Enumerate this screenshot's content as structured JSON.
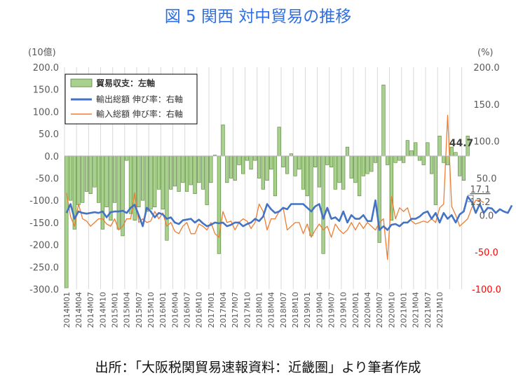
{
  "title": "図 5 関西 対中貿易の推移",
  "source": "出所：「大阪税関貿易速報資料：近畿圏」より筆者作成",
  "colors": {
    "bar_fill": "#a9d18e",
    "bar_stroke": "#548235",
    "export_line": "#4472c4",
    "import_line": "#ed7d31",
    "axis_text": "#595959",
    "right_negative": "#ff0000",
    "grid": "#d9d9d9"
  },
  "chart_data": {
    "type": "bar+line",
    "left_unit": "(10億)",
    "right_unit": "(%)",
    "y_left": {
      "min": -300,
      "max": 200,
      "step": 50,
      "ticks": [
        "200.0",
        "150.0",
        "100.0",
        "50.0",
        "0.0",
        "-50.0",
        "-100.0",
        "-150.0",
        "-200.0",
        "-250.0",
        "-300.0"
      ]
    },
    "y_right": {
      "min": -100,
      "max": 200,
      "step": 50,
      "ticks": [
        "200.0",
        "150.0",
        "100.0",
        "50.0",
        "0.0",
        "-50.0",
        "-100.0"
      ]
    },
    "x_tick_labels": [
      "2014M01",
      "2014M04",
      "2014M07",
      "2014M10",
      "2015M01",
      "2015M04",
      "2015M07",
      "2015M10",
      "2016M01",
      "2016M04",
      "2016M07",
      "2016M10",
      "2017M01",
      "2017M04",
      "2017M07",
      "2017M10",
      "2018M01",
      "2018M04",
      "2018M07",
      "2018M10",
      "2019M01",
      "2019M04",
      "2019M07",
      "2019M10",
      "2020M01",
      "2020M04",
      "2020M07",
      "2020M10",
      "2021M01",
      "2021M04",
      "2021M07",
      "2021M10"
    ],
    "legend": [
      {
        "label": "貿易収支：左軸",
        "kind": "bar"
      },
      {
        "label": "輸出総額 伸び率：右軸",
        "kind": "line"
      },
      {
        "label": "輸入総額 伸び率：右軸",
        "kind": "line"
      }
    ],
    "annotations": {
      "bar_last": "44.7",
      "export_last": "13.2",
      "import_last": "17.1"
    },
    "series": [
      {
        "name": "貿易収支：左軸",
        "axis": "left",
        "type": "bar",
        "values": [
          -297,
          -100,
          -165,
          -110,
          -105,
          -80,
          -85,
          -70,
          -105,
          -165,
          -115,
          -145,
          -105,
          -165,
          -180,
          -10,
          -130,
          -145,
          -115,
          -100,
          -125,
          -120,
          -115,
          -75,
          -120,
          -190,
          -75,
          -68,
          -80,
          -60,
          -80,
          -65,
          -85,
          -60,
          -75,
          -110,
          -60,
          2,
          -220,
          70,
          -60,
          -50,
          -55,
          -20,
          -40,
          -10,
          -30,
          -10,
          -50,
          -75,
          -55,
          -30,
          -90,
          65,
          -25,
          -40,
          5,
          -45,
          -30,
          -75,
          -90,
          -180,
          -25,
          -70,
          -220,
          -20,
          -25,
          -75,
          -60,
          -75,
          20,
          -50,
          -60,
          -90,
          -45,
          -40,
          -35,
          -15,
          -195,
          160,
          -20,
          -145,
          -15,
          -10,
          -15,
          35,
          12,
          30,
          -10,
          -20,
          30,
          -40,
          -110,
          45,
          -15,
          -20,
          20,
          8,
          -45,
          -55,
          45
        ]
      },
      {
        "name": "輸出総額 伸び率：右軸",
        "axis": "right",
        "type": "line",
        "values": [
          3,
          15,
          -5,
          5,
          3,
          2,
          3,
          4,
          3,
          5,
          -3,
          4,
          5,
          5,
          6,
          3,
          10,
          14,
          0,
          -15,
          10,
          5,
          -3,
          3,
          1,
          -5,
          -3,
          -10,
          -12,
          -7,
          -6,
          -5,
          -10,
          -6,
          -11,
          -15,
          -13,
          -10,
          -11,
          -10,
          -15,
          -13,
          -10,
          -10,
          -15,
          -12,
          -10,
          -5,
          -8,
          -2,
          15,
          8,
          3,
          5,
          10,
          8,
          15,
          15,
          15,
          15,
          10,
          5,
          12,
          15,
          -5,
          10,
          -5,
          -3,
          -8,
          5,
          -10,
          0,
          -5,
          -5,
          0,
          -8,
          -8,
          20,
          -20,
          -15,
          -20,
          -13,
          -12,
          -15,
          -10,
          -10,
          -5,
          -5,
          -2,
          3,
          5,
          -5,
          3,
          -10,
          3,
          -5,
          0,
          -10,
          1,
          5,
          25,
          18,
          3,
          15,
          3,
          10,
          9,
          3,
          8,
          5,
          3,
          13.2
        ]
      },
      {
        "name": "輸入総額 伸び率：右軸",
        "axis": "right",
        "type": "line",
        "values": [
          30,
          -2,
          -15,
          15,
          -5,
          -8,
          -15,
          -10,
          -5,
          -5,
          -12,
          -15,
          -5,
          -20,
          -15,
          -5,
          -5,
          30,
          -10,
          -5,
          -10,
          -8,
          5,
          -5,
          3,
          -15,
          -10,
          -22,
          -25,
          -15,
          -10,
          -25,
          -25,
          -12,
          -15,
          -20,
          -10,
          -25,
          -30,
          5,
          -10,
          -8,
          -20,
          -10,
          -5,
          -8,
          -18,
          -10,
          15,
          5,
          -20,
          -5,
          -5,
          5,
          10,
          -20,
          -15,
          -10,
          -10,
          -25,
          -12,
          -30,
          -20,
          -12,
          -20,
          -15,
          -30,
          -12,
          -20,
          -25,
          -20,
          -10,
          -20,
          -10,
          -18,
          -10,
          -15,
          -20,
          -10,
          -5,
          -60,
          25,
          -5,
          10,
          5,
          10,
          -8,
          -12,
          -10,
          -8,
          -10,
          -5,
          -10,
          10,
          15,
          135,
          12,
          0,
          -15,
          -10,
          -5,
          10,
          20,
          20,
          17.1
        ]
      }
    ]
  }
}
